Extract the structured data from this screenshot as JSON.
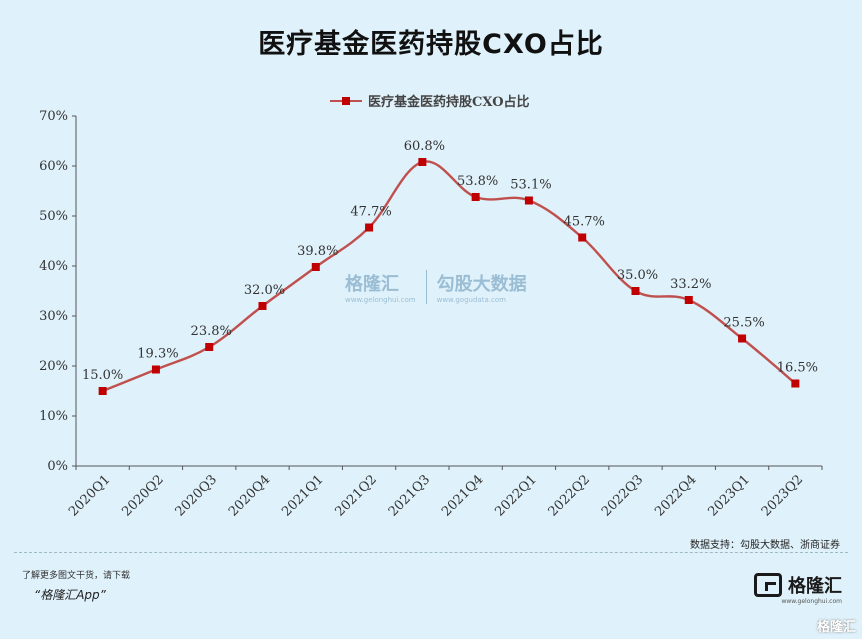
{
  "title": "医疗基金医药持股CXO占比",
  "chart_data": {
    "type": "line",
    "legend": "医疗基金医药持股CXO占比",
    "legend_position": "top-center",
    "categories": [
      "2020Q1",
      "2020Q2",
      "2020Q3",
      "2020Q4",
      "2021Q1",
      "2021Q2",
      "2021Q3",
      "2021Q4",
      "2022Q1",
      "2022Q2",
      "2022Q3",
      "2022Q4",
      "2023Q1",
      "2023Q2"
    ],
    "series": [
      {
        "name": "医疗基金医药持股CXO占比",
        "values": [
          15.0,
          19.3,
          23.8,
          32.0,
          39.8,
          47.7,
          60.8,
          53.8,
          53.1,
          45.7,
          35.0,
          33.2,
          25.5,
          16.5
        ],
        "labels": [
          "15.0%",
          "19.3%",
          "23.8%",
          "32.0%",
          "39.8%",
          "47.7%",
          "60.8%",
          "53.8%",
          "53.1%",
          "45.7%",
          "35.0%",
          "33.2%",
          "25.5%",
          "16.5%"
        ]
      }
    ],
    "ylim": [
      0,
      70
    ],
    "yticks": [
      0,
      10,
      20,
      30,
      40,
      50,
      60,
      70
    ],
    "ytick_labels": [
      "0%",
      "10%",
      "20%",
      "30%",
      "40%",
      "50%",
      "60%",
      "70%"
    ],
    "grid": false,
    "line_color": "#c0504d",
    "marker_color": "#c00000"
  },
  "source": "数据支持：勾股大数据、浙商证券",
  "footer": {
    "note": "了解更多图文干货，请下载",
    "app": "“格隆汇App”"
  },
  "brand": {
    "name": "格隆汇",
    "sub": "www.gelonghui.com"
  },
  "watermark": {
    "logo": "格隆汇",
    "logo_sub": "www.gelonghui.com",
    "name": "勾股大数据",
    "name_sub": "www.gogudata.com"
  },
  "corner": "格隆汇"
}
